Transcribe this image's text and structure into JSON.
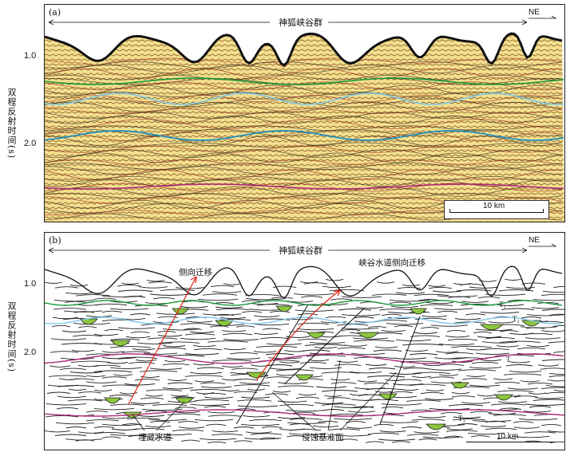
{
  "figure": {
    "y_axis_label": "双程反射时间(s)",
    "y_ticks": [
      "1.0",
      "2.0"
    ],
    "canyon_group_label": "神狐峡谷群",
    "direction_label": "NE",
    "scale_label": "10 km"
  },
  "panel_a": {
    "label": "(a)"
  },
  "panel_b": {
    "label": "(b)",
    "annotations": {
      "lateral_migration": "侧向迁移",
      "canyon_channel_migration": "峡谷水道侧向迁移",
      "buried_channel": "埋藏水道",
      "erosion_base": "侵蚀基准面"
    },
    "horizons": [
      "T₁",
      "T₂",
      "T",
      "T₃"
    ]
  },
  "colors": {
    "horizon_green": "#1a9a3a",
    "horizon_lightblue": "#7ec8e8",
    "horizon_blue": "#1f8fbf",
    "horizon_magenta": "#b0287a",
    "channel_fill": "#8cc63f",
    "arrow_red": "#e02010",
    "seismic_base": "#f3df8e"
  }
}
